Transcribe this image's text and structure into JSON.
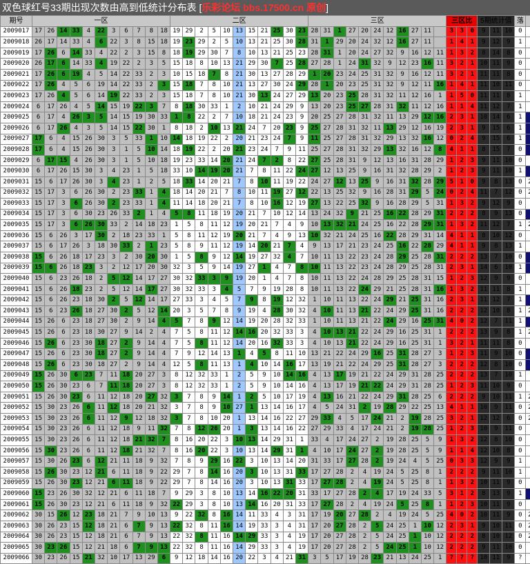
{
  "title": {
    "main": "双色球红号33期出现次数由高到低统计分布表 [",
    "site": "乐彩论坛 bbs.17500.cn 原创",
    "close": "]"
  },
  "headers": {
    "period": "期号",
    "zone1": "一区",
    "zone2": "二区",
    "zone3": "三区",
    "ratio": "三区比",
    "stats": "5期统计值",
    "drop": "落",
    "link": "连"
  },
  "rows": [
    {
      "id": "2009017",
      "z1": "17 26 14 33 4 22 3 6 7 8 18",
      "z2": "19 29 2 5 10 13 15 21 25 30 23",
      "z3": "28 31 1 27 20 24 12 16 27 11",
      "r": [
        "3",
        "3",
        "0"
      ],
      "s": [
        "9",
        "11",
        "10"
      ],
      "d": "0",
      "l": "2"
    },
    {
      "id": "2009018",
      "z1": "26 17 14 33 4 6 22 3 8 15 18",
      "z2": "19 23 29 2 5 10 13 21 25 30 28",
      "z3": "31 1 29 20 24 32 12 16 27 11",
      "r": [
        "1",
        "4",
        "1"
      ],
      "s": [
        "9",
        "12",
        "9"
      ],
      "d": "1",
      "l": "2"
    },
    {
      "id": "2009019",
      "z1": "17 26 6 14 33 4 22 2 3 15 8",
      "z2": "18 19 29 30 7 8 10 13 21 25 23",
      "z3": "28 31 1 20 24 27 32 9 16 12 11",
      "r": [
        "1",
        "3",
        "2"
      ],
      "s": [
        "8",
        "14",
        "8"
      ],
      "d": "0",
      "l": "3"
    },
    {
      "id": "2009020",
      "z1": "26 17 6 14 33 4 19 22 2 3 5",
      "z2": "15 18 8 10 13 21 29 30 7 25 28",
      "z3": "27 28 1 24 31 32 9 12 23 16 11",
      "r": [
        "3",
        "2",
        "1"
      ],
      "s": [
        "10",
        "11",
        "9"
      ],
      "d": "0",
      "l": "1"
    },
    {
      "id": "2009021",
      "z1": "17 26 6 19 4 5 14 22 33 2 3",
      "z2": "10 15 18 7 8 21 30 13 27 28 29",
      "z3": "1 20 23 24 25 31 32 9 16 12 11",
      "r": [
        "3",
        "2",
        "1"
      ],
      "s": [
        "11",
        "11",
        "8"
      ],
      "d": "0",
      "l": "1"
    },
    {
      "id": "2009022",
      "z1": "17 26 4 5 6 19 14 22 33 2 3",
      "z2": "15 18 7 8 10 21 13 27 30 24 29",
      "z3": "28 1 20 23 25 31 32 9 12 11 16",
      "r": [
        "1",
        "4",
        "1"
      ],
      "s": [
        "11",
        "10",
        "11"
      ],
      "d": "0",
      "l": "2"
    },
    {
      "id": "2009023",
      "z1": "17 26 4 5 6 14 19 22 33 2 3",
      "z2": "15 18 7 8 10 21 30 13 24 27 29",
      "z3": "13 20 23 25 28 31 32 11 12 16 1",
      "r": [
        "1",
        "5",
        "0"
      ],
      "s": [
        "11",
        "11",
        "8"
      ],
      "d": "1",
      "l": "2"
    },
    {
      "id": "2009024",
      "z1": "6 17 26 4 5 14 15 19 22 3 7",
      "z2": "8 18 30 33 1 2 10 21 24 29 9",
      "z3": "13 20 23 25 27 28 31 32 11 12 16",
      "r": [
        "1",
        "1",
        "4"
      ],
      "s": [
        "11",
        "12",
        "7"
      ],
      "d": "1",
      "l": "3"
    },
    {
      "id": "2009025",
      "z1": "6 17 4 26 3 5 14 15 19 30 33",
      "z2": "1 8 22 2 7 10 18 21 24 23 9",
      "z3": "20 25 27 28 31 32 11 13 29 12 16",
      "r": [
        "2",
        "3",
        "1"
      ],
      "s": [
        "10",
        "14",
        "6"
      ],
      "d": "1",
      "l": ""
    },
    {
      "id": "2009026",
      "z1": "6 17 26 4 3 5 14 15 22 30 1",
      "z2": "8 18 2 10 13 21 24 7 20 23 9",
      "z3": "25 27 28 31 32 11 13 29 12 16 19",
      "r": [
        "2",
        "3",
        "1"
      ],
      "s": [
        "9",
        "15",
        "6"
      ],
      "d": "1",
      "l": ""
    },
    {
      "id": "2009027",
      "z1": "17 6 4 15 26 30 3 5 33 1 10",
      "z2": "14 18 19 22 2 20 21 23 24 7 9",
      "z3": "11 25 27 28 31 32 29 13 32 16 12",
      "r": [
        "0",
        "2",
        "4"
      ],
      "s": [
        "9",
        "15",
        "6"
      ],
      "d": "1",
      "l": ""
    },
    {
      "id": "2009028",
      "z1": "17 6 4 15 26 30 3 1 5 10 14",
      "z2": "18 19 22 2 20 21 23 24 7 9 11",
      "z3": "25 27 28 31 32 29 13 32 16 12 8",
      "r": [
        "4",
        "1",
        "1"
      ],
      "s": [
        "8",
        "15",
        "7"
      ],
      "d": "0",
      "l": ""
    },
    {
      "id": "2009029",
      "z1": "6 17 15 4 26 30 3 1 5 10 18",
      "z2": "19 23 33 14 20 21 24 7 2 8 22",
      "z3": "27 25 28 31 9 12 13 16 31 28 29",
      "r": [
        "1",
        "2",
        "3"
      ],
      "s": [
        "9",
        "11",
        "10"
      ],
      "d": "0",
      "l": "2"
    },
    {
      "id": "2009030",
      "z1": "6 17 26 15 30 3 4 23 1 5 18",
      "z2": "33 10 14 19 20 21 7 8 11 22 24",
      "z3": "27 12 13 25 9 16 31 32 28 29 2",
      "r": [
        "1",
        "2",
        "3"
      ],
      "s": [
        "9",
        "11",
        "10"
      ],
      "d": "1",
      "l": ""
    },
    {
      "id": "2009031",
      "z1": "15 6 17 26 30 3 4 23 1 2 5",
      "z2": "18 33 14 20 21 7 8 10 11 19 22",
      "z3": "24 27 12 13 25 9 16 31 32 28 29",
      "r": [
        "5",
        "1",
        "0"
      ],
      "s": [
        "9",
        "8",
        "13"
      ],
      "d": "0",
      "l": "2×2"
    },
    {
      "id": "2009032",
      "z1": "15 17 3 6 26 30 2 23 33 1 4",
      "z2": "18 14 20 21 7 8 10 11 19 27 12",
      "z3": "22 13 25 32 9 16 28 31 29 5 24",
      "r": [
        "0",
        "2",
        "4"
      ],
      "s": [
        "11",
        "7",
        "12"
      ],
      "d": "0",
      "l": "2+4"
    },
    {
      "id": "2009033",
      "z1": "15 17 3 6 26 30 2 23 33 1 4",
      "z2": "11 14 18 20 21 7 8 10 16 12 19",
      "z3": "27 13 22 25 32 9 16 28 29 5 31",
      "r": [
        "1",
        "3",
        "2"
      ],
      "s": [
        "9",
        "12",
        "9"
      ],
      "d": "0",
      "l": "1"
    },
    {
      "id": "2009034",
      "z1": "15 17 3 6 30 23 26 33 2 1 4",
      "z2": "5 8 11 18 19 20 21 7 10 12 14",
      "z3": "13 24 32 9 21 25 16 22 28 29 31",
      "r": [
        "2",
        "2",
        "2"
      ],
      "s": [
        "8",
        "9",
        "13"
      ],
      "d": "0",
      "l": ""
    },
    {
      "id": "2009035",
      "z1": "15 17 3 6 26 30 33 2 14 18 23",
      "z2": "1 5 8 11 12 19 20 21 7 4 9",
      "z3": "10 13 32 21 24 25 16 22 28 29 31",
      "r": [
        "1",
        "3",
        "2"
      ],
      "s": [
        "11",
        "12",
        "7"
      ],
      "d": "1",
      "l": "2×2"
    },
    {
      "id": "2009036",
      "z1": "15 6 26 3 17 30 2 18 23 33 1",
      "z2": "5 8 11 12 19 20 21 7 4 9 13",
      "z3": "10 32 21 24 25 16 22 28 29 31 14",
      "r": [
        "4",
        "1",
        "1"
      ],
      "s": [
        "8",
        "10",
        "12"
      ],
      "d": "0",
      "l": "2"
    },
    {
      "id": "2009037",
      "z1": "15 6 17 26 3 18 30 33 2 1 23",
      "z2": "5 8 9 11 12 19 14 20 21 7 4",
      "z3": "9 13 17 21 23 24 25 16 22 28 29",
      "r": [
        "4",
        "1",
        "1"
      ],
      "s": [
        "9",
        "8",
        "13"
      ],
      "d": "1",
      "l": "2"
    },
    {
      "id": "2009038",
      "z1": "15 6 26 18 17 23 3 2 30 20 30",
      "z2": "1 5 8 9 12 14 19 27 32 4 7",
      "z3": "10 11 13 22 23 24 28 29 25 28 31",
      "r": [
        "2",
        "2",
        "2"
      ],
      "s": [
        "13",
        "7",
        "10"
      ],
      "d": "0",
      "l": ""
    },
    {
      "id": "2009039",
      "z1": "15 6 26 18 23 3 2 12 17 20 30",
      "z2": "32 3 5 9 14 19 27 1 4 7 8",
      "z3": "10 11 13 22 23 24 28 29 25 28 31",
      "r": [
        "2",
        "3",
        "1"
      ],
      "s": [
        "14",
        "6",
        "10"
      ],
      "d": "1",
      "l": ""
    },
    {
      "id": "2009040",
      "z1": "15 6 23 26 18 2 5 12 14 17 27",
      "z2": "30 32 33 3 9 19 20 1 4 7 8",
      "z3": "10 11 13 22 24 28 29 25 28 31 15",
      "r": [
        "1",
        "2",
        "3"
      ],
      "s": [
        "12",
        "9",
        "9"
      ],
      "d": "0",
      "l": "2"
    },
    {
      "id": "2009041",
      "z1": "15 6 26 18 23 2 5 12 14 17 27",
      "z2": "30 32 33 3 4 5 7 9 19 28 8",
      "z3": "10 11 13 22 24 29 21 25 28 31 16",
      "r": [
        "1",
        "3",
        "2"
      ],
      "s": [
        "11",
        "11",
        "8"
      ],
      "d": "1",
      "l": "2"
    },
    {
      "id": "2009042",
      "z1": "15 6 26 23 18 30 2 5 12 14 17",
      "z2": "27 33 3 4 5 7 9 8 19 12 32",
      "z3": "1 10 11 13 22 24 29 21 25 31 16",
      "r": [
        "2",
        "3",
        "1"
      ],
      "s": [
        "11",
        "12",
        "7"
      ],
      "d": "1",
      "l": ""
    },
    {
      "id": "2009043",
      "z1": "15 6 23 26 18 27 30 2 5 12 14",
      "z2": "20 3 5 7 8 9 19 4 28 30 32",
      "z3": "4 10 11 13 21 22 24 29 25 31 16",
      "r": [
        "2",
        "2",
        "2"
      ],
      "s": [
        "12",
        "10",
        "8"
      ],
      "d": "1",
      "l": "2×2"
    },
    {
      "id": "2009044",
      "z1": "15 26 6 23 18 27 30 2 9 14 4",
      "z2": "5 7 8 9 12 14 19 20 28 32 33",
      "z3": "1 10 11 13 21 22 24 29 16 25 31",
      "r": [
        "4",
        "0",
        "2"
      ],
      "s": [
        "12",
        "7",
        "11"
      ],
      "d": "1",
      "l": ""
    },
    {
      "id": "2009045",
      "z1": "15 26 6 23 18 30 27 9 14 2 4",
      "z2": "7 5 8 11 12 14 16 20 32 33 3",
      "z3": "4 10 13 21 22 24 29 16 25 31 1",
      "r": [
        "2",
        "2",
        "2"
      ],
      "s": [
        "13",
        "9",
        "8"
      ],
      "d": "1",
      "l": "2×2"
    },
    {
      "id": "2009046",
      "z1": "15 26 6 23 30 18 27 2 9 14 4",
      "z2": "7 5 8 11 12 14 20 16 32 33 3",
      "z3": "4 10 13 21 22 24 29 16 25 31 1",
      "r": [
        "3",
        "2",
        "1"
      ],
      "s": [
        "11",
        "11",
        "8"
      ],
      "d": "0",
      "l": "2"
    },
    {
      "id": "2009047",
      "z1": "15 26 6 23 30 18 27 2 9 14 4",
      "z2": "7 9 12 14 13 1 4 5 8 11 10",
      "z3": "13 21 22 24 29 16 25 31 28 27 3",
      "r": [
        "1",
        "2",
        "3"
      ],
      "s": [
        "11",
        "9",
        "10"
      ],
      "d": "0",
      "l": ""
    },
    {
      "id": "2009048",
      "z1": "15 26 6 23 30 18 27 2 9 14 4",
      "z2": "12 5 8 11 13 1 4 10 14 16 17",
      "z3": "13 19 21 22 24 29 25 31 28 27 3",
      "r": [
        "2",
        "2",
        "2"
      ],
      "s": [
        "12",
        "8",
        "10"
      ],
      "d": "0",
      "l": ""
    },
    {
      "id": "2009049",
      "z1": "15 26 30 6 23 7 11 18 20 27 3",
      "z2": "8 12 32 33 1 2 5 9 10 14 16",
      "z3": "4 13 17 19 21 22 24 29 31 28 25",
      "r": [
        "2",
        "2",
        "2"
      ],
      "s": [
        "13",
        "7",
        "10"
      ],
      "d": "1",
      "l": "2"
    },
    {
      "id": "2009050",
      "z1": "15 26 30 23 6 7 11 18 20 27 3",
      "z2": "8 12 32 33 1 2 5 9 10 14 16",
      "z3": "4 13 17 19 21 22 24 29 31 28 25",
      "r": [
        "1",
        "2",
        "3"
      ],
      "s": [
        "11",
        "10",
        "9"
      ],
      "d": "0",
      "l": "1"
    },
    {
      "id": "2009051",
      "z1": "15 26 30 23 6 11 12 18 20 27 32",
      "z2": "3 7 8 9 14 1 2 5 10 17 19",
      "z3": "4 13 16 21 22 24 29 31 28 25 6",
      "r": [
        "2",
        "2",
        "2"
      ],
      "s": [
        "9",
        "10",
        "11"
      ],
      "d": "1",
      "l": "2×2"
    },
    {
      "id": "2009052",
      "z1": "15 30 23 26 6 11 12 18 20 21 32",
      "z2": "3 7 8 9 10 27 1 13 14 16 17",
      "z3": "4 5 24 31 2 19 28 29 22 25 13",
      "r": [
        "4",
        "1",
        "1"
      ],
      "s": [
        "10",
        "9",
        "11"
      ],
      "d": "0",
      "l": "2×2"
    },
    {
      "id": "2009053",
      "z1": "15 30 23 26 6 11 12 9 12 18 32",
      "z2": "3 7 8 10 20 1 13 14 16 22 27",
      "z3": "29 33 4 5 17 24 21 2 19 28 25",
      "r": [
        "3",
        "2",
        "1"
      ],
      "s": [
        "12",
        "12",
        "6"
      ],
      "d": "0",
      "l": "2×2"
    },
    {
      "id": "2009054",
      "z1": "15 30 23 26 6 11 12 18 9 11 32",
      "z2": "7 8 12 26 20 1 3 13 14 16 22",
      "z3": "27 29 33 4 17 24 21 2 19 28 25",
      "r": [
        "1",
        "2",
        "3"
      ],
      "s": [
        "10",
        "9",
        "11"
      ],
      "d": "0",
      "l": "2"
    },
    {
      "id": "2009055",
      "z1": "15 30 23 26 6 11 12 18 21 32 7",
      "z2": "8 16 20 22 3 10 13 14 29 31 1",
      "z3": "33 4 17 24 27 2 19 28 25 5 9",
      "r": [
        "1",
        "3",
        "2"
      ],
      "s": [
        "12",
        "8",
        "10"
      ],
      "d": "0",
      "l": "1"
    },
    {
      "id": "2009056",
      "z1": "15 30 23 26 6 11 12 18 21 32 7",
      "z2": "8 16 20 22 3 10 13 14 29 31 1",
      "z3": "4 10 17 24 27 2 19 28 25 5 9",
      "r": [
        "1",
        "1",
        "4"
      ],
      "s": [
        "12",
        "10",
        "8"
      ],
      "d": "0",
      "l": "2"
    },
    {
      "id": "2009057",
      "z1": "15 30 26 23 6 12 21 11 18 9 32",
      "z2": "7 8 9 29 16 22 3 10 13 14 20",
      "z3": "31 33 17 27 28 2 19 24 4 5 25",
      "r": [
        "0",
        "3",
        "3"
      ],
      "s": [
        "12",
        "9",
        "9"
      ],
      "d": "1",
      "l": "1"
    },
    {
      "id": "2009058",
      "z1": "15 26 30 23 12 21 6 11 18 9 22",
      "z2": "29 7 8 14 16 20 3 10 13 31 33",
      "z3": "17 27 28 2 4 19 24 5 25 8 1",
      "r": [
        "2",
        "2",
        "2"
      ],
      "s": [
        "9",
        "11",
        "10"
      ],
      "d": "1",
      "l": "2"
    },
    {
      "id": "2009059",
      "z1": "15 26 30 23 12 21 6 11 18 9 22",
      "z2": "29 7 8 14 16 20 3 10 13 31 33",
      "z3": "17 27 28 2 4 19 24 5 25 8 1",
      "r": [
        "1",
        "3",
        "2"
      ],
      "s": [
        "10",
        "11",
        "9"
      ],
      "d": "0",
      "l": "2"
    },
    {
      "id": "2009060",
      "z1": "15 23 26 30 32 12 21 6 11 18 7",
      "z2": "9 29 3 8 10 13 14 16 22 20 31",
      "z3": "33 17 27 28 2 4 17 19 24 33 5",
      "r": [
        "3",
        "1",
        "2"
      ],
      "s": [
        "8",
        "13",
        "9"
      ],
      "d": "1",
      "l": ""
    },
    {
      "id": "2009061",
      "z1": "15 26 30 23 12 21 6 11 18 9 32",
      "z2": "22 29 3 8 10 13 14 16 20 31 33",
      "z3": "17 27 28 2 4 19 24 5 25 8 1",
      "r": [
        "1",
        "2",
        "3"
      ],
      "s": [
        "10",
        "11",
        "9"
      ],
      "d": "0",
      "l": "2"
    },
    {
      "id": "2009062",
      "z1": "30 15 26 12 23 18 21 7 9 10 13",
      "z2": "9 22 32 8 16 14 11 33 4 3 31",
      "z3": "17 19 20 27 28 2 4 19 24 5 25",
      "r": [
        "4",
        "0",
        "2"
      ],
      "s": [
        "10",
        "11",
        "9"
      ],
      "d": "0",
      "l": "2×2"
    },
    {
      "id": "2009063",
      "z1": "30 26 23 15 12 18 21 6 7 9 13",
      "z2": "22 32 8 11 16 14 19 33 3 4 31",
      "z3": "17 20 27 28 2 5 24 25 1 10 12",
      "r": [
        "2",
        "3",
        "1"
      ],
      "s": [
        "9",
        "10",
        "11"
      ],
      "d": "0",
      "l": "2×2"
    },
    {
      "id": "2009064",
      "z1": "30 26 23 15 12 18 21 6 7 9 13",
      "z2": "22 32 8 11 16 14 29 33 3 4 19",
      "z3": "17 20 27 28 2 5 24 25 1 10 12",
      "r": [
        "2",
        "2",
        "2"
      ],
      "s": [
        "8",
        "10",
        "12"
      ],
      "d": "0",
      "l": "2×2"
    },
    {
      "id": "2009065",
      "z1": "30 23 26 15 12 21 18 6 7 9 13",
      "z2": "22 32 8 11 16 14 29 33 3 4 19",
      "z3": "17 20 27 28 2 5 24 25 1 10 12",
      "r": [
        "2",
        "2",
        "2"
      ],
      "s": [
        "9",
        "11",
        "10"
      ],
      "d": "0",
      "l": "2"
    },
    {
      "id": "2009066",
      "z1": "30 23 26 15 21 32 10 17 13 29 6",
      "z2": "9 12 18 14 16 20 22 3 4 21 31",
      "z3": "3 5 17 19 28 23 21 13 24 25 1",
      "r": [
        "?",
        "?",
        "?"
      ],
      "s": [
        "10",
        "11",
        "9"
      ],
      "d": "?",
      "l": "?"
    }
  ],
  "highlights": {
    "2009017": [
      2,
      3,
      5,
      19,
      21,
      24,
      29
    ],
    "2009018": [
      5,
      12,
      21,
      23,
      29
    ],
    "2009019": [
      1,
      3,
      12,
      23
    ],
    "2009020": [
      1,
      2,
      5,
      19,
      21,
      26,
      31
    ],
    "2009021": [
      1,
      2,
      3,
      14,
      22,
      23
    ]
  },
  "colors": {
    "title_bg": "#5a5a5a",
    "title_site": "#ff3030",
    "hit": "#1f8f1f",
    "cell": "#c0c0c0",
    "ratio": "#ff1010",
    "stats": "#2a2a2a",
    "zone2_col": "#9ec8ff",
    "blue_block": "#101070"
  }
}
